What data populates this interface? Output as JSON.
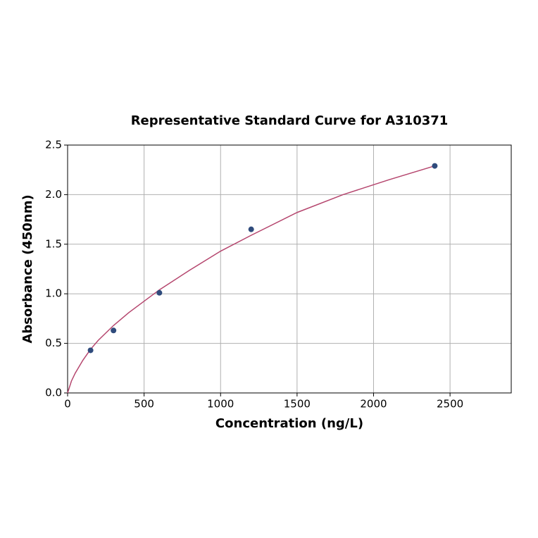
{
  "chart_data": {
    "type": "scatter",
    "title": "Representative Standard Curve for A310371",
    "xlabel": "Concentration (ng/L)",
    "ylabel": "Absorbance (450nm)",
    "xlim": [
      0,
      2900
    ],
    "ylim": [
      0,
      2.5
    ],
    "xticks": [
      0,
      500,
      1000,
      1500,
      2000,
      2500
    ],
    "yticks": [
      {
        "value": 0,
        "label": "0.0"
      },
      {
        "value": 0.5,
        "label": "0.5"
      },
      {
        "value": 1,
        "label": "1.0"
      },
      {
        "value": 1.5,
        "label": "1.5"
      },
      {
        "value": 2,
        "label": "2.0"
      },
      {
        "value": 2.5,
        "label": "2.5"
      }
    ],
    "grid": true,
    "series": [
      {
        "type": "scatter",
        "color": "#2f4b7c",
        "x": [
          150,
          300,
          600,
          1200,
          2400
        ],
        "values": [
          0.43,
          0.63,
          1.01,
          1.65,
          2.29
        ]
      },
      {
        "type": "line",
        "color": "#b5466e",
        "x": [
          0,
          25,
          50,
          100,
          150,
          200,
          300,
          400,
          600,
          800,
          1000,
          1200,
          1500,
          1800,
          2100,
          2400
        ],
        "values": [
          0,
          0.12,
          0.2,
          0.33,
          0.44,
          0.53,
          0.68,
          0.81,
          1.04,
          1.24,
          1.43,
          1.59,
          1.82,
          2.0,
          2.15,
          2.29
        ]
      }
    ]
  }
}
